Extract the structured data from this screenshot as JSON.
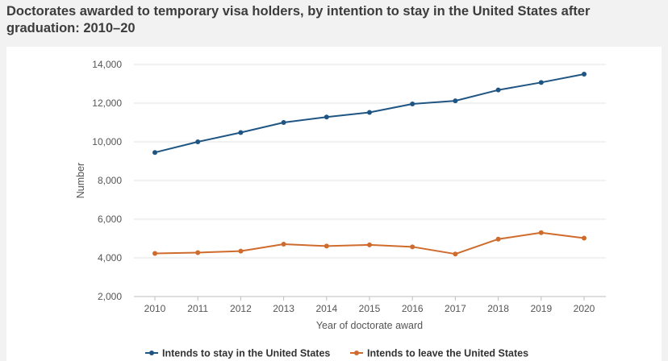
{
  "title": "Doctorates awarded to temporary visa holders, by intention to stay in the United States after graduation: 2010–20",
  "chart_data": {
    "type": "line",
    "title": "Doctorates awarded to temporary visa holders, by intention to stay in the United States after graduation: 2010–20",
    "xlabel": "Year of doctorate award",
    "ylabel": "Number",
    "categories": [
      "2010",
      "2011",
      "2012",
      "2013",
      "2014",
      "2015",
      "2016",
      "2017",
      "2018",
      "2019",
      "2020"
    ],
    "ylim": [
      2000,
      14000
    ],
    "yticks": [
      2000,
      4000,
      6000,
      8000,
      10000,
      12000,
      14000
    ],
    "ytick_labels": [
      "2,000",
      "4,000",
      "6,000",
      "8,000",
      "10,000",
      "12,000",
      "14,000"
    ],
    "grid": "horizontal",
    "legend_position": "bottom",
    "series": [
      {
        "name": "Intends to stay in the United States",
        "color": "#1f5582",
        "values": [
          9450,
          10000,
          10480,
          11000,
          11280,
          11520,
          11960,
          12120,
          12680,
          13070,
          13500
        ]
      },
      {
        "name": "Intends to leave the United States",
        "color": "#cf6b2c",
        "values": [
          4230,
          4270,
          4350,
          4710,
          4610,
          4670,
          4570,
          4200,
          4970,
          5300,
          5020
        ]
      }
    ]
  }
}
